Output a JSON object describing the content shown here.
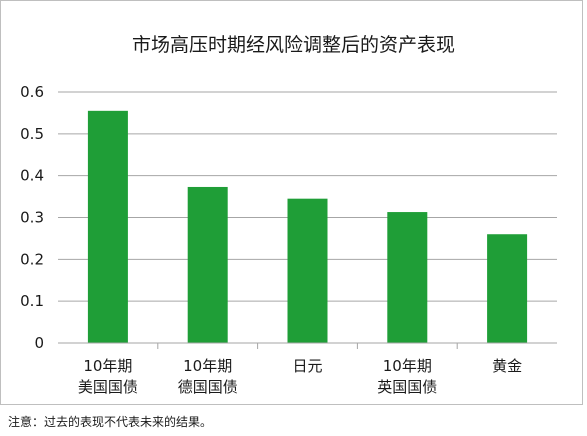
{
  "chart_data": {
    "type": "bar",
    "title": "市场高压时期经风险调整后的资产表现",
    "categories": [
      [
        "10年期",
        "美国国债"
      ],
      [
        "10年期",
        "德国国债"
      ],
      [
        "日元"
      ],
      [
        "10年期",
        "英国国债"
      ],
      [
        "黄金"
      ]
    ],
    "values": [
      0.555,
      0.373,
      0.345,
      0.313,
      0.26
    ],
    "ylim": [
      0,
      0.6
    ],
    "yticks": [
      "0",
      "0.1",
      "0.2",
      "0.3",
      "0.4",
      "0.5",
      "0.6"
    ],
    "grid": true,
    "bar_color": "#1f9e37",
    "grid_color": "#a6a6a6",
    "xlabel": "",
    "ylabel": ""
  },
  "footnote": "注意：过去的表现不代表未来的结果。"
}
